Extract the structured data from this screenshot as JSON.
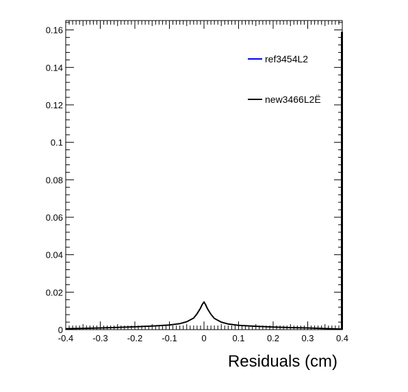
{
  "chart_data": {
    "type": "line",
    "title": "",
    "xlabel": "Residuals (cm)",
    "ylabel": "",
    "xlim": [
      -0.4,
      0.4
    ],
    "ylim": [
      0,
      0.165
    ],
    "x_ticks": [
      -0.4,
      -0.3,
      -0.2,
      -0.1,
      0,
      0.1,
      0.2,
      0.3,
      0.4
    ],
    "x_tick_labels": [
      "-0.4",
      "-0.3",
      "-0.2",
      "-0.1",
      "0",
      "0.1",
      "0.2",
      "0.3",
      "0.4"
    ],
    "y_ticks": [
      0,
      0.02,
      0.04,
      0.06,
      0.08,
      0.1,
      0.12,
      0.14,
      0.16
    ],
    "y_tick_labels": [
      "0",
      "0.02",
      "0.04",
      "0.06",
      "0.08",
      "0.1",
      "0.12",
      "0.14",
      "0.16"
    ],
    "grid": false,
    "legend_position": "top-right",
    "series": [
      {
        "name": "ref3454L2",
        "color": "#0000ff",
        "x": [],
        "y": []
      },
      {
        "name": "new3466L2Ë",
        "color": "#000000",
        "x": [
          -0.4,
          -0.35,
          -0.3,
          -0.25,
          -0.2,
          -0.15,
          -0.1,
          -0.07,
          -0.05,
          -0.03,
          -0.02,
          -0.01,
          -0.005,
          0,
          0.005,
          0.01,
          0.02,
          0.03,
          0.05,
          0.07,
          0.1,
          0.15,
          0.2,
          0.25,
          0.3,
          0.35,
          0.4
        ],
        "y": [
          0.0005,
          0.0007,
          0.0009,
          0.0012,
          0.0015,
          0.0019,
          0.0025,
          0.0032,
          0.0042,
          0.0062,
          0.0085,
          0.0115,
          0.0135,
          0.0147,
          0.0132,
          0.0112,
          0.0082,
          0.006,
          0.004,
          0.003,
          0.0023,
          0.0018,
          0.0014,
          0.0011,
          0.0009,
          0.0006,
          0.0003
        ]
      }
    ]
  }
}
